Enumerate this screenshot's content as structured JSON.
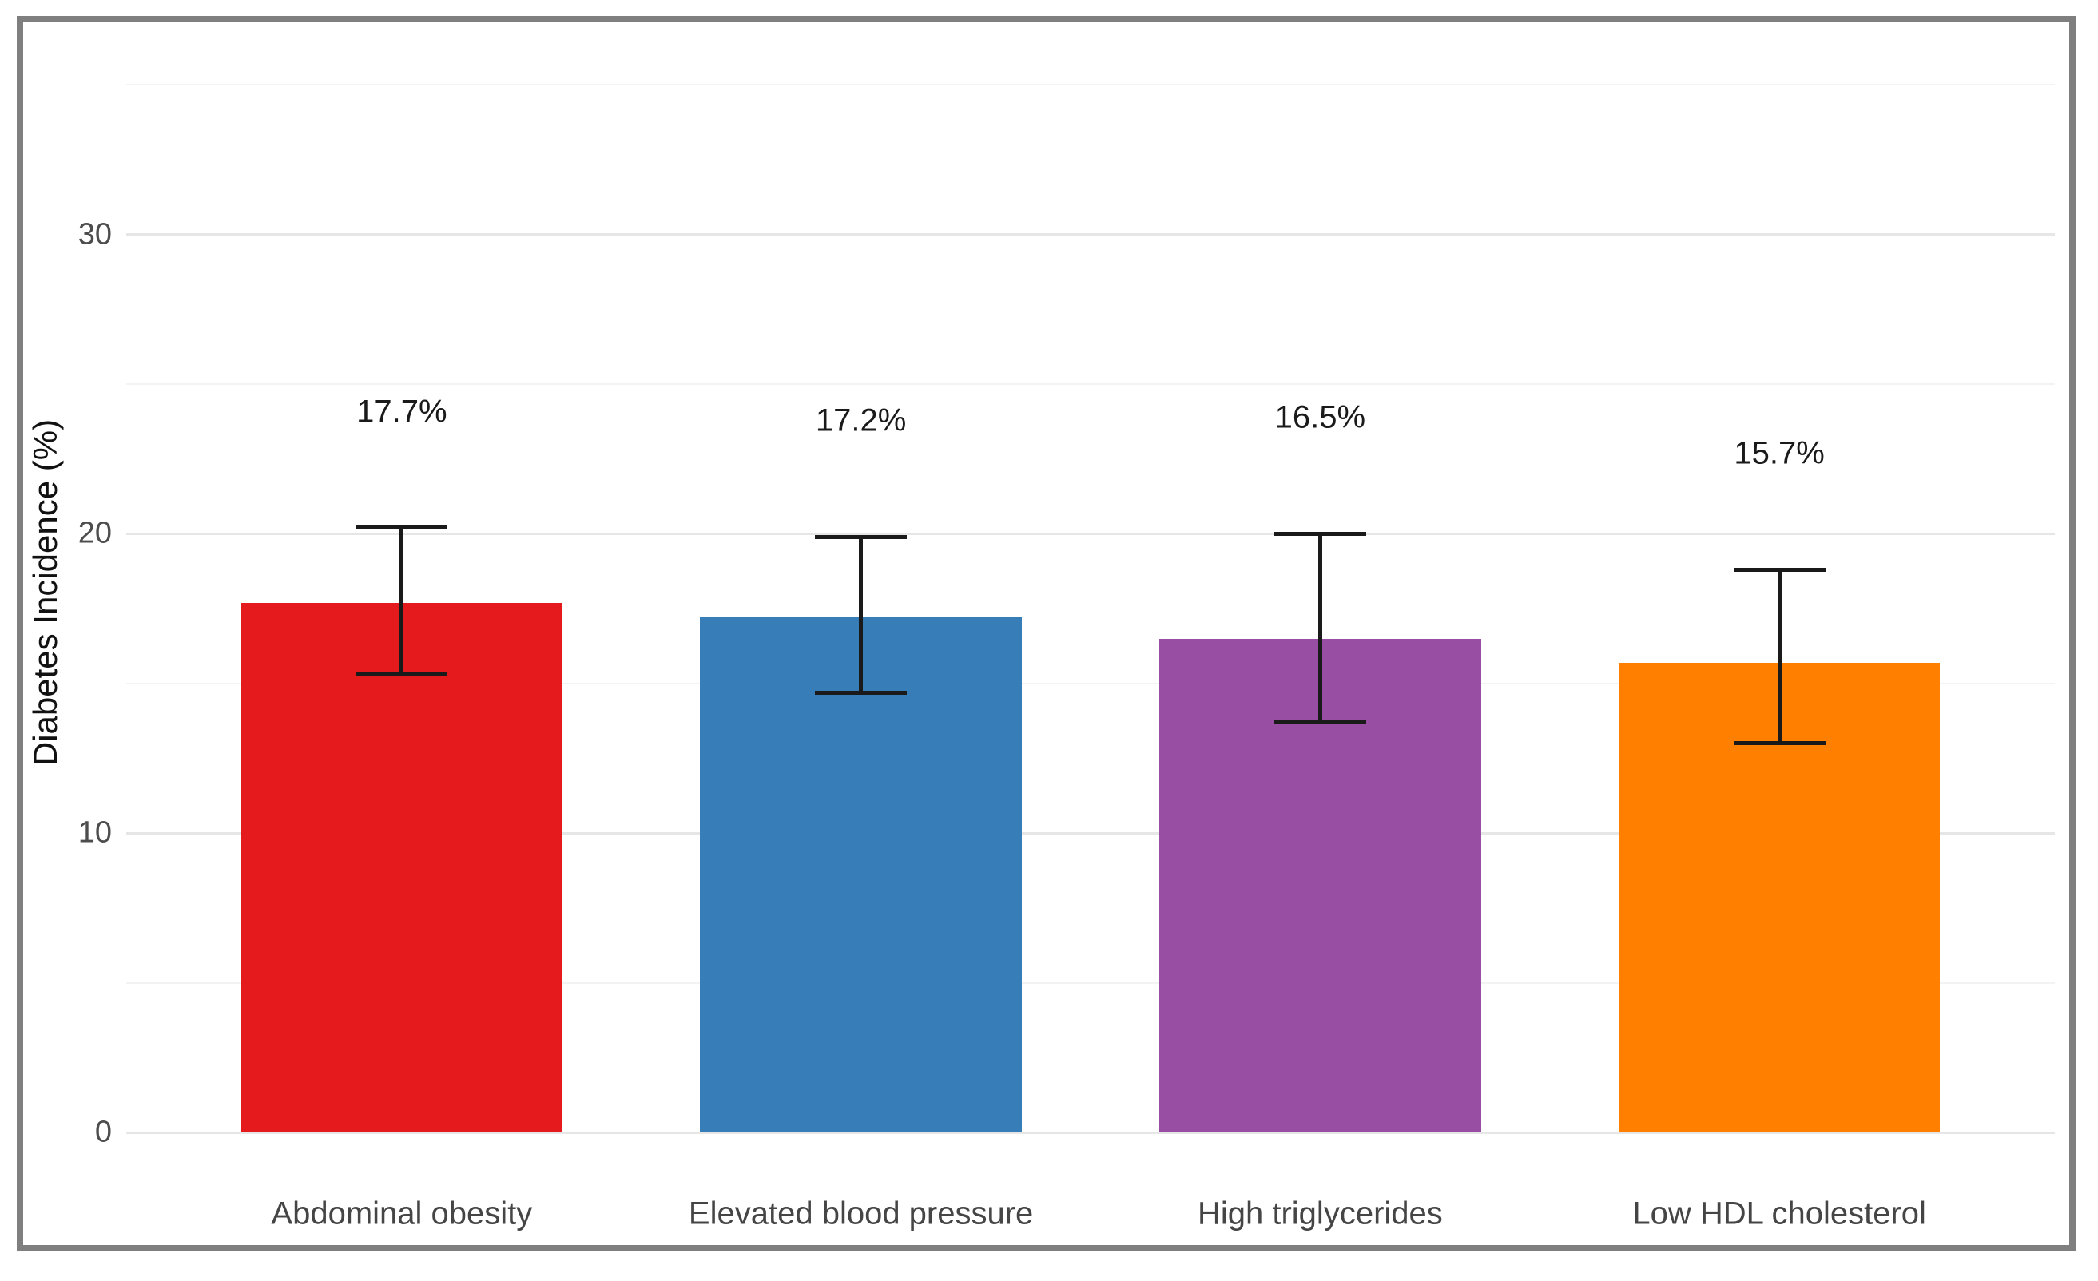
{
  "chart_data": {
    "type": "bar",
    "title": "",
    "ylabel": "Diabetes Incidence (%)",
    "xlabel": "",
    "categories": [
      "Abdominal obesity",
      "Elevated blood pressure",
      "High triglycerides",
      "Low HDL cholesterol"
    ],
    "values": [
      17.7,
      17.2,
      16.5,
      15.7
    ],
    "value_labels": [
      "17.7%",
      "17.2%",
      "16.5%",
      "15.7%"
    ],
    "error_low": [
      15.3,
      14.7,
      13.7,
      13.0
    ],
    "error_high": [
      20.2,
      19.9,
      20.0,
      18.8
    ],
    "bar_colors": [
      "#e41a1c",
      "#377eb8",
      "#984ea3",
      "#ff7f00"
    ],
    "yticks": [
      0,
      10,
      20,
      30
    ],
    "ytick_labels": [
      "0",
      "10",
      "20",
      "30"
    ],
    "yticks_minor": [
      5,
      15,
      25,
      35
    ],
    "ylim": [
      0,
      36.1
    ],
    "grid": "horizontal major and minor gridlines, no vertical",
    "legend_position": "none",
    "bar_width_fraction": 0.7,
    "errorbar_cap_fraction": 0.2,
    "colors": {
      "background": "#ffffff",
      "frame_border": "#7f7f7f",
      "grid_major": "#e6e6e6",
      "grid_minor": "#f3f3f3",
      "axis_text": "#4d4d4d",
      "category_text": "#454545",
      "value_text": "#1a1a1a",
      "errorbar": "#1a1a1a"
    }
  }
}
